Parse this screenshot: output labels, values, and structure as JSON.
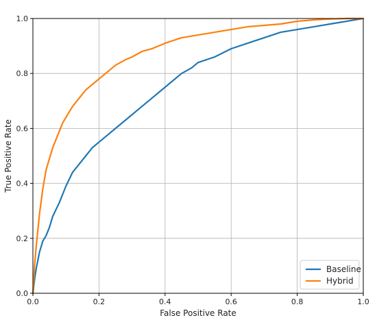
{
  "chart_data": {
    "type": "line",
    "xlabel": "False Positive Rate",
    "ylabel": "True Positive Rate",
    "xlim": [
      0.0,
      1.0
    ],
    "ylim": [
      0.0,
      1.0
    ],
    "xticks": [
      "0.0",
      "0.2",
      "0.4",
      "0.6",
      "0.8",
      "1.0"
    ],
    "yticks": [
      "0.0",
      "0.2",
      "0.4",
      "0.6",
      "0.8",
      "1.0"
    ],
    "grid": true,
    "legend": {
      "position": "bottom-right"
    },
    "series": [
      {
        "name": "Baseline",
        "color": "#1f77b4",
        "x": [
          0.0,
          0.005,
          0.01,
          0.02,
          0.03,
          0.04,
          0.05,
          0.06,
          0.08,
          0.09,
          0.1,
          0.12,
          0.14,
          0.16,
          0.18,
          0.2,
          0.22,
          0.25,
          0.28,
          0.3,
          0.33,
          0.36,
          0.38,
          0.4,
          0.42,
          0.45,
          0.48,
          0.5,
          0.55,
          0.6,
          0.65,
          0.7,
          0.75,
          0.8,
          0.85,
          0.9,
          0.95,
          1.0
        ],
        "y": [
          0.0,
          0.05,
          0.09,
          0.15,
          0.19,
          0.21,
          0.24,
          0.28,
          0.33,
          0.36,
          0.39,
          0.44,
          0.47,
          0.5,
          0.53,
          0.55,
          0.57,
          0.6,
          0.63,
          0.65,
          0.68,
          0.71,
          0.73,
          0.75,
          0.77,
          0.8,
          0.82,
          0.84,
          0.86,
          0.89,
          0.91,
          0.93,
          0.95,
          0.96,
          0.97,
          0.98,
          0.99,
          1.0
        ]
      },
      {
        "name": "Hybrid",
        "color": "#ff7f0e",
        "x": [
          0.0,
          0.005,
          0.01,
          0.015,
          0.02,
          0.03,
          0.04,
          0.05,
          0.06,
          0.07,
          0.08,
          0.09,
          0.1,
          0.12,
          0.14,
          0.16,
          0.18,
          0.2,
          0.22,
          0.25,
          0.28,
          0.3,
          0.33,
          0.36,
          0.4,
          0.45,
          0.5,
          0.55,
          0.6,
          0.65,
          0.7,
          0.75,
          0.8,
          0.85,
          0.9,
          0.95,
          1.0
        ],
        "y": [
          0.0,
          0.1,
          0.17,
          0.23,
          0.29,
          0.38,
          0.45,
          0.49,
          0.53,
          0.56,
          0.59,
          0.62,
          0.64,
          0.68,
          0.71,
          0.74,
          0.76,
          0.78,
          0.8,
          0.83,
          0.85,
          0.86,
          0.88,
          0.89,
          0.91,
          0.93,
          0.94,
          0.95,
          0.96,
          0.97,
          0.975,
          0.98,
          0.99,
          0.995,
          0.998,
          1.0,
          1.0
        ]
      }
    ]
  }
}
